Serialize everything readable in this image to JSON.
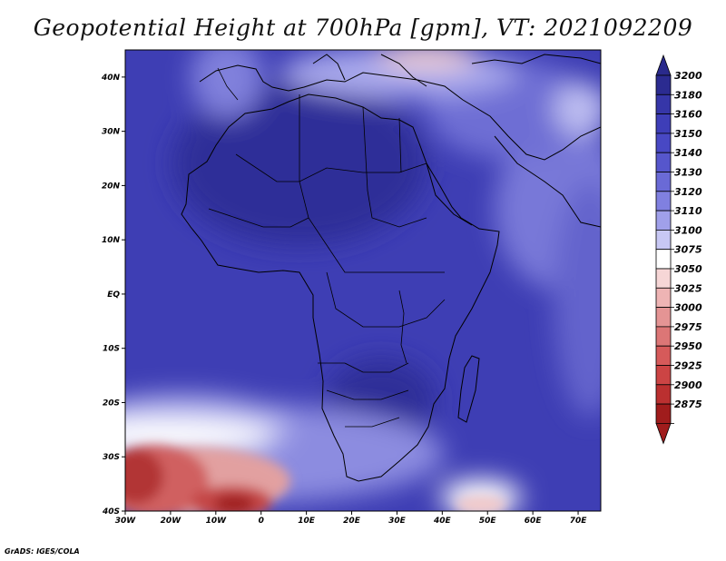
{
  "title": "Geopotential Height at 700hPa [gpm], VT: 2021092209",
  "footer": "GrADS: IGES/COLA",
  "map": {
    "variable": "Geopotential Height",
    "level": "700hPa",
    "units": "gpm",
    "valid_time": "2021092209",
    "extent": {
      "lon_min": -30,
      "lon_max": 75,
      "lat_min": -40,
      "lat_max": 45
    },
    "lat_ticks": [
      {
        "value": 40,
        "label": "40N"
      },
      {
        "value": 30,
        "label": "30N"
      },
      {
        "value": 20,
        "label": "20N"
      },
      {
        "value": 10,
        "label": "10N"
      },
      {
        "value": 0,
        "label": "EQ"
      },
      {
        "value": -10,
        "label": "10S"
      },
      {
        "value": -20,
        "label": "20S"
      },
      {
        "value": -30,
        "label": "30S"
      },
      {
        "value": -40,
        "label": "40S"
      }
    ],
    "lon_ticks": [
      {
        "value": -30,
        "label": "30W"
      },
      {
        "value": -20,
        "label": "20W"
      },
      {
        "value": -10,
        "label": "10W"
      },
      {
        "value": 0,
        "label": "0"
      },
      {
        "value": 10,
        "label": "10E"
      },
      {
        "value": 20,
        "label": "20E"
      },
      {
        "value": 30,
        "label": "30E"
      },
      {
        "value": 40,
        "label": "40E"
      },
      {
        "value": 50,
        "label": "50E"
      },
      {
        "value": 60,
        "label": "60E"
      },
      {
        "value": 70,
        "label": "70E"
      }
    ]
  },
  "colorbar": {
    "top_color": "#2a2a8c",
    "bottom_color": "#a01c1c",
    "levels": [
      {
        "label": "3200",
        "color": "#2b2b90"
      },
      {
        "label": "3180",
        "color": "#3636a8"
      },
      {
        "label": "3160",
        "color": "#3e3eb8"
      },
      {
        "label": "3150",
        "color": "#4848c4"
      },
      {
        "label": "3140",
        "color": "#5656cc"
      },
      {
        "label": "3130",
        "color": "#6a6ad6"
      },
      {
        "label": "3120",
        "color": "#8080e0"
      },
      {
        "label": "3110",
        "color": "#a0a0ea"
      },
      {
        "label": "3100",
        "color": "#c8c8f4"
      },
      {
        "label": "3075",
        "color": "#ffffff"
      },
      {
        "label": "3050",
        "color": "#f6d6d6"
      },
      {
        "label": "3025",
        "color": "#eeb4b4"
      },
      {
        "label": "3000",
        "color": "#e49494"
      },
      {
        "label": "2975",
        "color": "#dc7676"
      },
      {
        "label": "2950",
        "color": "#d65a5a"
      },
      {
        "label": "2925",
        "color": "#cc4444"
      },
      {
        "label": "2900",
        "color": "#bb3030"
      },
      {
        "label": "2875",
        "color": "#a01c1c"
      }
    ]
  }
}
